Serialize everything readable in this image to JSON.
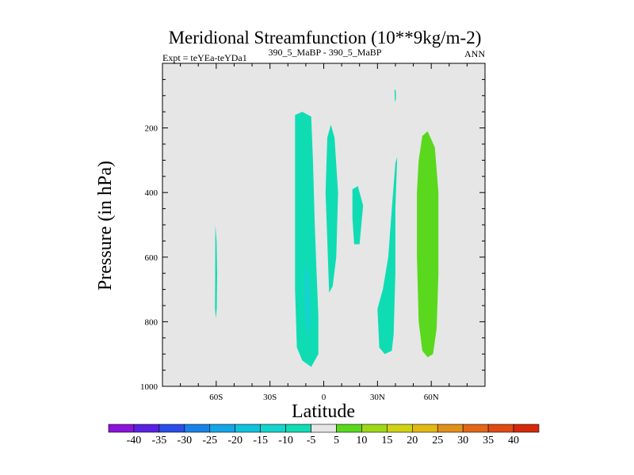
{
  "chart_data": {
    "type": "heatmap",
    "title": "Meridional Streamfunction (10**9kg/m-2)",
    "subtitle_left": "Expt = teYEa-teYDa1",
    "subtitle_center": "390_5_MaBP - 390_5_MaBP",
    "subtitle_right": "ANN",
    "xlabel": "Latitude",
    "ylabel": "Pressure (in hPa)",
    "xlim": [
      -90,
      90
    ],
    "ylim": [
      1000,
      0
    ],
    "x_ticks": [
      {
        "value": -60,
        "label": "60S"
      },
      {
        "value": -30,
        "label": "30S"
      },
      {
        "value": 0,
        "label": "0"
      },
      {
        "value": 30,
        "label": "30N"
      },
      {
        "value": 60,
        "label": "60N"
      }
    ],
    "y_ticks": [
      {
        "value": 200,
        "label": "200"
      },
      {
        "value": 400,
        "label": "400"
      },
      {
        "value": 600,
        "label": "600"
      },
      {
        "value": 800,
        "label": "800"
      },
      {
        "value": 1000,
        "label": "1000"
      }
    ],
    "background_color": "#e6e6e6",
    "colorbar": {
      "levels": [
        "-40",
        "-35",
        "-30",
        "-25",
        "-20",
        "-15",
        "-10",
        "-5",
        "5",
        "10",
        "15",
        "20",
        "25",
        "30",
        "35",
        "40"
      ],
      "colors": [
        "#8a14d8",
        "#5a22e0",
        "#2a4ee8",
        "#1a82e6",
        "#14a6e6",
        "#10c2dc",
        "#14d4cc",
        "#10dcb4",
        "#e6e6e6",
        "#5ad81e",
        "#9ed818",
        "#d0d214",
        "#e2b812",
        "#e0901c",
        "#e06818",
        "#e04a14",
        "#d42a0a"
      ]
    },
    "regions": [
      {
        "name": "lat-60s-thin",
        "level": "-10",
        "color": "#10dcb4",
        "points": [
          [
            -60.5,
            500
          ],
          [
            -59.8,
            550
          ],
          [
            -59.5,
            650
          ],
          [
            -59.7,
            760
          ],
          [
            -60.2,
            790
          ],
          [
            -60.7,
            760
          ],
          [
            -60.6,
            650
          ]
        ]
      },
      {
        "name": "lat-15s-column",
        "level": "-10",
        "color": "#10dcb4",
        "points": [
          [
            -16,
            160
          ],
          [
            -12,
            150
          ],
          [
            -7,
            165
          ],
          [
            -6,
            300
          ],
          [
            -5,
            500
          ],
          [
            -4,
            650
          ],
          [
            -3,
            780
          ],
          [
            -3,
            900
          ],
          [
            -7,
            940
          ],
          [
            -12,
            920
          ],
          [
            -15,
            880
          ],
          [
            -16,
            700
          ],
          [
            -16,
            400
          ]
        ]
      },
      {
        "name": "lat-10s-core",
        "level": "-15",
        "color": "#14d4cc",
        "points": [
          [
            -10,
            620
          ],
          [
            -8,
            660
          ],
          [
            -7,
            760
          ],
          [
            -8,
            850
          ],
          [
            -10,
            820
          ],
          [
            -11,
            740
          ],
          [
            -11,
            660
          ]
        ]
      },
      {
        "name": "lat-5n-column",
        "level": "-10",
        "color": "#10dcb4",
        "points": [
          [
            2,
            230
          ],
          [
            4,
            190
          ],
          [
            6,
            230
          ],
          [
            8,
            400
          ],
          [
            7,
            600
          ],
          [
            5,
            690
          ],
          [
            3,
            710
          ],
          [
            2,
            550
          ],
          [
            1,
            400
          ]
        ]
      },
      {
        "name": "lat-18n-blob",
        "level": "-10",
        "color": "#10dcb4",
        "points": [
          [
            16,
            390
          ],
          [
            19,
            380
          ],
          [
            22,
            440
          ],
          [
            20,
            560
          ],
          [
            17,
            560
          ],
          [
            16,
            480
          ]
        ]
      },
      {
        "name": "lat-40n-top",
        "level": "-10",
        "color": "#10dcb4",
        "points": [
          [
            39.5,
            80
          ],
          [
            40.2,
            85
          ],
          [
            40.3,
            110
          ],
          [
            39.7,
            120
          ]
        ]
      },
      {
        "name": "lat-35n-column",
        "level": "-10",
        "color": "#10dcb4",
        "points": [
          [
            40,
            310
          ],
          [
            41,
            290
          ],
          [
            40,
            450
          ],
          [
            40,
            650
          ],
          [
            39,
            840
          ],
          [
            38,
            890
          ],
          [
            34,
            900
          ],
          [
            31,
            880
          ],
          [
            30,
            760
          ],
          [
            33,
            700
          ],
          [
            36,
            600
          ],
          [
            38,
            450
          ]
        ]
      },
      {
        "name": "lat-60n-column",
        "level": "10",
        "color": "#5ad81e",
        "points": [
          [
            55,
            225
          ],
          [
            58,
            210
          ],
          [
            62,
            260
          ],
          [
            64,
            400
          ],
          [
            64,
            650
          ],
          [
            63,
            820
          ],
          [
            61,
            900
          ],
          [
            58,
            910
          ],
          [
            55,
            890
          ],
          [
            53,
            800
          ],
          [
            52,
            600
          ],
          [
            52,
            400
          ],
          [
            53,
            300
          ]
        ]
      }
    ]
  }
}
